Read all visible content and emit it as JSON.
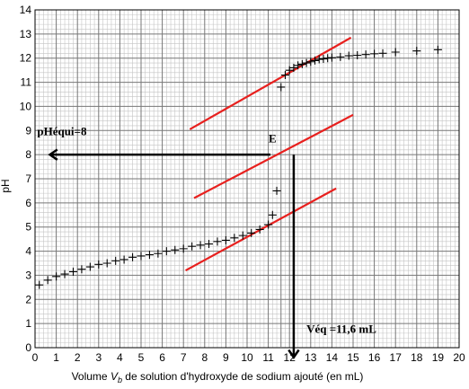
{
  "chart_data": {
    "type": "scatter",
    "title": "",
    "xlabel_parts": [
      "Volume ",
      "V",
      "b",
      " de solution d'hydroxyde de sodium ajouté (en mL)"
    ],
    "ylabel": "pH",
    "xlim": [
      0,
      20
    ],
    "ylim": [
      0,
      14
    ],
    "x_ticks": [
      0,
      1,
      2,
      3,
      4,
      5,
      6,
      7,
      8,
      9,
      10,
      11,
      12,
      13,
      14,
      15,
      16,
      17,
      18,
      19,
      20
    ],
    "y_ticks": [
      0,
      1,
      2,
      3,
      4,
      5,
      6,
      7,
      8,
      9,
      10,
      11,
      12,
      13,
      14
    ],
    "grid": true,
    "series": [
      {
        "marker": "+",
        "color": "#000000",
        "points": [
          [
            0.2,
            2.6
          ],
          [
            0.6,
            2.8
          ],
          [
            1.0,
            2.95
          ],
          [
            1.4,
            3.05
          ],
          [
            1.8,
            3.15
          ],
          [
            2.2,
            3.25
          ],
          [
            2.6,
            3.35
          ],
          [
            3.0,
            3.45
          ],
          [
            3.4,
            3.5
          ],
          [
            3.8,
            3.6
          ],
          [
            4.2,
            3.65
          ],
          [
            4.6,
            3.75
          ],
          [
            5.0,
            3.8
          ],
          [
            5.4,
            3.85
          ],
          [
            5.8,
            3.9
          ],
          [
            6.2,
            4.0
          ],
          [
            6.6,
            4.05
          ],
          [
            7.0,
            4.1
          ],
          [
            7.4,
            4.2
          ],
          [
            7.8,
            4.25
          ],
          [
            8.2,
            4.3
          ],
          [
            8.6,
            4.4
          ],
          [
            9.0,
            4.45
          ],
          [
            9.4,
            4.55
          ],
          [
            9.8,
            4.65
          ],
          [
            10.2,
            4.75
          ],
          [
            10.6,
            4.9
          ],
          [
            11.0,
            5.1
          ],
          [
            11.2,
            5.5
          ],
          [
            11.4,
            6.5
          ],
          [
            11.6,
            10.8
          ],
          [
            11.8,
            11.3
          ],
          [
            12.0,
            11.5
          ],
          [
            12.2,
            11.6
          ],
          [
            12.4,
            11.7
          ],
          [
            12.6,
            11.75
          ],
          [
            12.8,
            11.8
          ],
          [
            13.0,
            11.85
          ],
          [
            13.2,
            11.9
          ],
          [
            13.4,
            11.95
          ],
          [
            13.6,
            11.97
          ],
          [
            13.8,
            12.0
          ],
          [
            14.0,
            12.02
          ],
          [
            14.4,
            12.05
          ],
          [
            14.8,
            12.1
          ],
          [
            15.2,
            12.12
          ],
          [
            15.6,
            12.15
          ],
          [
            16.0,
            12.18
          ],
          [
            16.4,
            12.2
          ],
          [
            17.0,
            12.25
          ],
          [
            18.0,
            12.3
          ],
          [
            19.0,
            12.35
          ]
        ]
      }
    ],
    "tangent_lines": [
      {
        "color": "#e8201e",
        "from": [
          7.3,
          9.05
        ],
        "to": [
          14.9,
          12.85
        ]
      },
      {
        "color": "#e8201e",
        "from": [
          7.5,
          6.2
        ],
        "to": [
          15.0,
          9.65
        ]
      },
      {
        "color": "#e8201e",
        "from": [
          7.1,
          3.2
        ],
        "to": [
          14.2,
          6.6
        ]
      }
    ],
    "arrows": [
      {
        "color": "#000000",
        "from": [
          11.1,
          8.0
        ],
        "to": [
          0.7,
          8.0
        ]
      },
      {
        "color": "#000000",
        "from": [
          12.2,
          8.0
        ],
        "to": [
          12.2,
          -0.4
        ]
      }
    ],
    "vertical_marker": {
      "x": 11.6,
      "y_from": 0,
      "y_to": 10.8,
      "color": "#7a7a7a"
    },
    "annotations": [
      {
        "id": "pheq",
        "text": "pHéqui=8",
        "at": [
          0.1,
          9.0
        ],
        "anchor": "start"
      },
      {
        "id": "point-e",
        "text": "E",
        "at": [
          11.2,
          8.7
        ],
        "anchor": "middle"
      },
      {
        "id": "veq",
        "text": "Véq =11,6 mL",
        "at": [
          12.8,
          0.8
        ],
        "anchor": "start"
      }
    ]
  }
}
